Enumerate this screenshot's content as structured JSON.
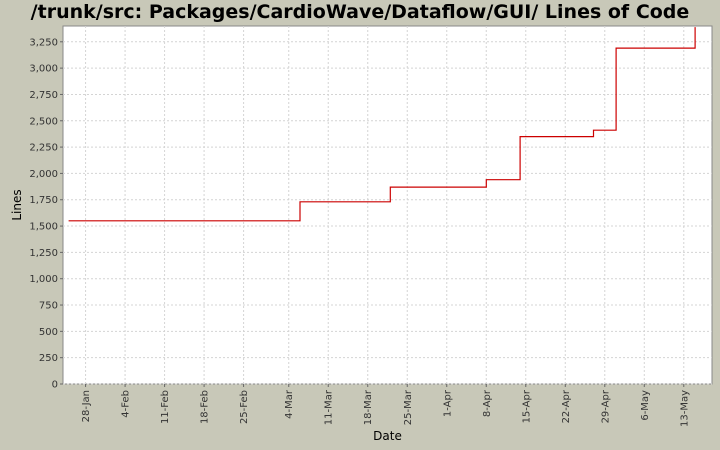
{
  "chart_data": {
    "type": "line",
    "title": "/trunk/src: Packages/CardioWave/Dataflow/GUI/ Lines of Code",
    "xlabel": "Date",
    "ylabel": "Lines",
    "ylim": [
      0,
      3400
    ],
    "xlim": [
      "2008-01-24",
      "2008-05-18"
    ],
    "y_ticks": [
      0,
      250,
      500,
      750,
      1000,
      1250,
      1500,
      1750,
      2000,
      2250,
      2500,
      2750,
      3000,
      3250
    ],
    "y_tick_labels": [
      "0",
      "250",
      "500",
      "750",
      "1,000",
      "1,250",
      "1,500",
      "1,750",
      "2,000",
      "2,250",
      "2,500",
      "2,750",
      "3,000",
      "3,250"
    ],
    "x_ticks": [
      "2008-01-28",
      "2008-02-04",
      "2008-02-11",
      "2008-02-18",
      "2008-02-25",
      "2008-03-04",
      "2008-03-11",
      "2008-03-18",
      "2008-03-25",
      "2008-04-01",
      "2008-04-08",
      "2008-04-15",
      "2008-04-22",
      "2008-04-29",
      "2008-05-06",
      "2008-05-13"
    ],
    "x_tick_labels": [
      "28-Jan",
      "4-Feb",
      "11-Feb",
      "18-Feb",
      "25-Feb",
      "4-Mar",
      "11-Mar",
      "18-Mar",
      "25-Mar",
      "1-Apr",
      "8-Apr",
      "15-Apr",
      "22-Apr",
      "29-Apr",
      "6-May",
      "13-May"
    ],
    "grid": true,
    "line_style": "step",
    "series": [
      {
        "color": "#cc0000",
        "points": [
          [
            "2008-01-25",
            1550
          ],
          [
            "2008-03-06",
            1730
          ],
          [
            "2008-03-22",
            1870
          ],
          [
            "2008-04-08",
            1940
          ],
          [
            "2008-04-14",
            2350
          ],
          [
            "2008-04-27",
            2410
          ],
          [
            "2008-05-01",
            3190
          ],
          [
            "2008-05-15",
            3390
          ]
        ],
        "end": "2008-05-15"
      }
    ]
  },
  "colors": {
    "background": "#c8c8b8",
    "plot_background": "#ffffff",
    "grid": "#d4d4d4",
    "line": "#cc0000"
  }
}
